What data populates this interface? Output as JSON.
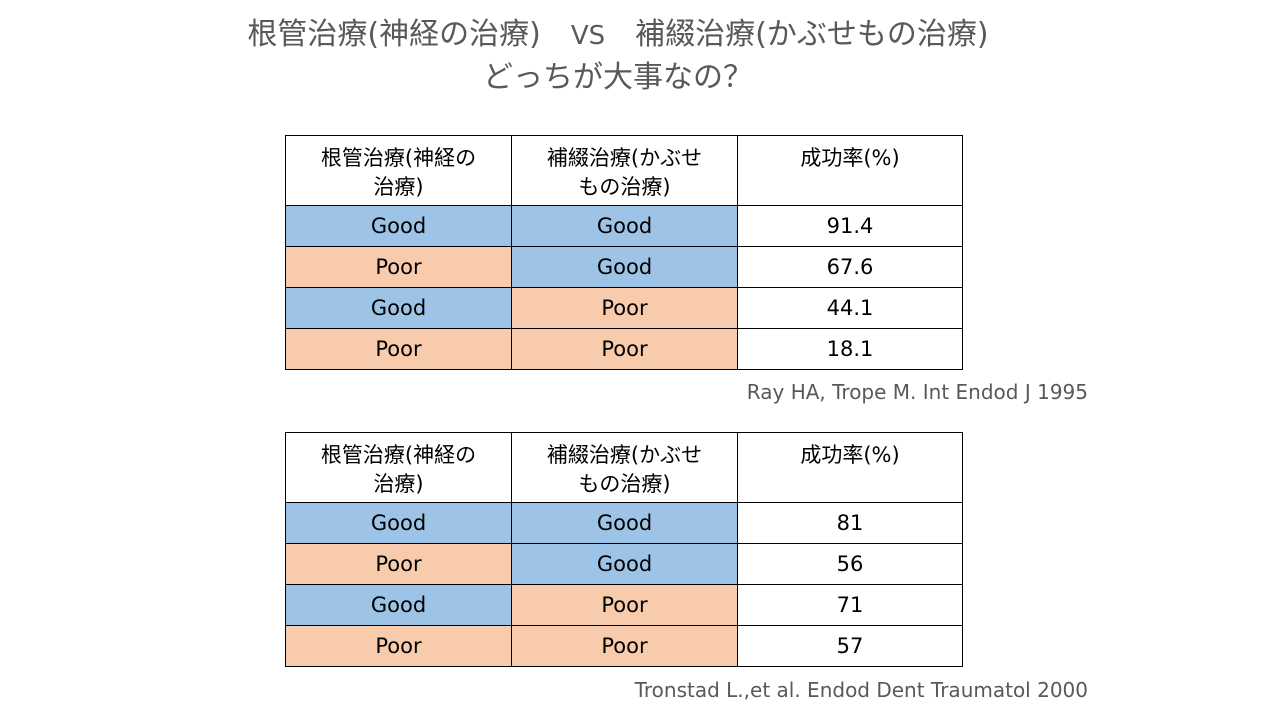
{
  "title": {
    "line1_left": "根管治療(神経の治療)",
    "vs": "VS",
    "line1_right": "補綴治療(かぶせもの治療)",
    "line2": "どっちが大事なの？"
  },
  "headers": {
    "col1_line1": "根管治療(神経の",
    "col1_line2": "治療)",
    "col2_line1": "補綴治療(かぶせ",
    "col2_line2": "もの治療)",
    "col3": "成功率(%)"
  },
  "studies": [
    {
      "rows": [
        {
          "root": "Good",
          "crown": "Good",
          "rate": "91.4"
        },
        {
          "root": "Poor",
          "crown": "Good",
          "rate": "67.6"
        },
        {
          "root": "Good",
          "crown": "Poor",
          "rate": "44.1"
        },
        {
          "root": "Poor",
          "crown": "Poor",
          "rate": "18.1"
        }
      ],
      "citation": "Ray HA, Trope M. Int Endod J 1995"
    },
    {
      "rows": [
        {
          "root": "Good",
          "crown": "Good",
          "rate": "81"
        },
        {
          "root": "Poor",
          "crown": "Good",
          "rate": "56"
        },
        {
          "root": "Good",
          "crown": "Poor",
          "rate": "71"
        },
        {
          "root": "Poor",
          "crown": "Poor",
          "rate": "57"
        }
      ],
      "citation": "Tronstad L.,et al. Endod Dent Traumatol 2000"
    }
  ],
  "colors": {
    "good": "#9dc3e6",
    "poor": "#f8cbad",
    "title_text": "#595959"
  }
}
